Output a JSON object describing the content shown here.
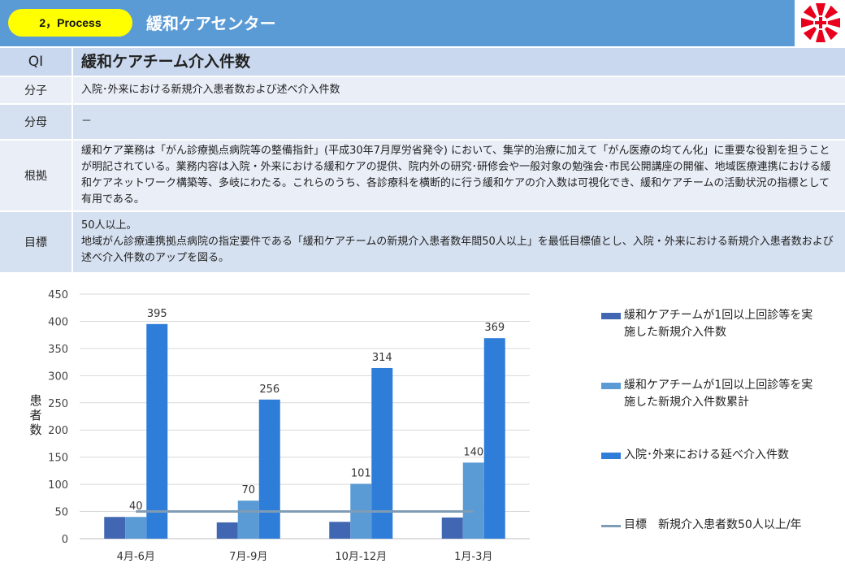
{
  "header": {
    "section_label": "2，Process",
    "center_name": "緩和ケアセンター"
  },
  "table": {
    "qi_label": "QI",
    "qi_value": "緩和ケアチーム介入件数",
    "rows": [
      {
        "label": "分子",
        "text": "入院･外来における新規介入患者数および述べ介入件数"
      },
      {
        "label": "分母",
        "text": "－"
      },
      {
        "label": "根拠",
        "text": "緩和ケア業務は「がん診療拠点病院等の整備指針」(平成30年7月厚労省発令) において、集学的治療に加えて「がん医療の均てん化」に重要な役割を担うことが明記されている。業務内容は入院・外来における緩和ケアの提供、院内外の研究･研修会や一般対象の勉強会･市民公開講座の開催、地域医療連携における緩和ケアネットワーク構築等、多岐にわたる。これらのうち、各診療科を横断的に行う緩和ケアの介入数は可視化でき、緩和ケアチームの活動状況の指標として有用である。"
      },
      {
        "label": "目標",
        "text_lines": [
          "50人以上。",
          "地域がん診療連携拠点病院の指定要件である「緩和ケアチームの新規介入患者数年間50人以上」を最低目標値とし、入院・外来における新規介入患者数および述べ介入件数のアップを図る。"
        ]
      }
    ]
  },
  "chart_data": {
    "type": "bar",
    "categories": [
      "4月-6月",
      "7月-9月",
      "10月-12月",
      "1月-3月"
    ],
    "ylabel": "患者数",
    "ylim": [
      0,
      450
    ],
    "yticks": [
      0,
      50,
      100,
      150,
      200,
      250,
      300,
      350,
      400,
      450
    ],
    "grid": true,
    "legend_position": "right",
    "series": [
      {
        "name": "緩和ケアチームが1回以上回診等を実施した新規介入件数",
        "values": [
          40,
          30,
          31,
          39
        ],
        "color": "#4267b2",
        "labeled": [
          false,
          false,
          false,
          false
        ]
      },
      {
        "name": "緩和ケアチームが1回以上回診等を実施した新規介入件数累計",
        "values": [
          40,
          70,
          101,
          140
        ],
        "color": "#5b9bd5",
        "labeled": [
          true,
          true,
          true,
          true
        ]
      },
      {
        "name": "入院･外来における延べ介入件数",
        "values": [
          395,
          256,
          314,
          369
        ],
        "color": "#2e7dd8",
        "labeled": [
          true,
          true,
          true,
          true
        ]
      }
    ],
    "target_line": {
      "name": "目標　新規介入患者数50人以上/年",
      "value": 50,
      "color": "#7f9cb6"
    }
  }
}
